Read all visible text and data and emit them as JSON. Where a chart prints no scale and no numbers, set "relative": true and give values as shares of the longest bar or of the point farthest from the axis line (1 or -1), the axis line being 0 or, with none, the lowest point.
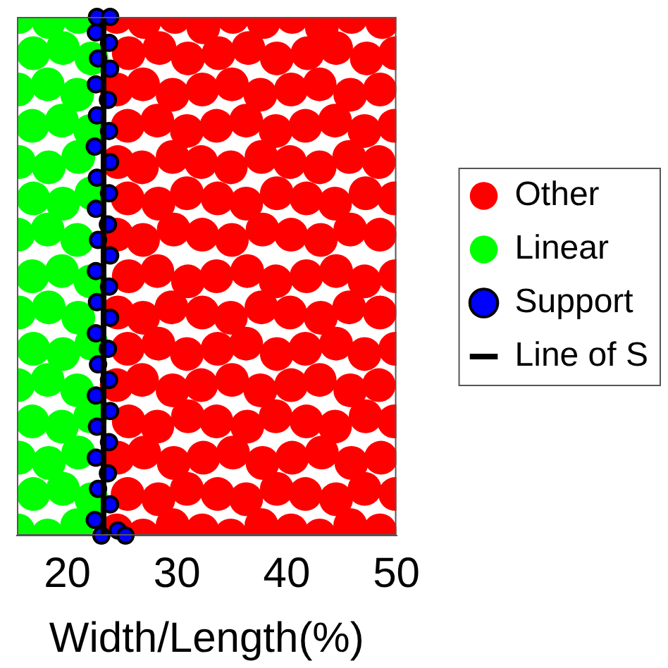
{
  "chart_data": {
    "type": "scatter",
    "xlabel": "Width/Length(%)",
    "xlim": [
      15.4,
      50
    ],
    "xticks": [
      20,
      30,
      40,
      50
    ],
    "relative": true,
    "tick_labels": "x",
    "legend": "right",
    "marker": "circle",
    "series": [
      {
        "name": "Other",
        "color": "#ff0000",
        "x": [
          24.5,
          27.0,
          29.8,
          32.4,
          35.1,
          37.9,
          40.5,
          43.2,
          45.9,
          48.7,
          25.6,
          28.4,
          31.0,
          33.8,
          36.5,
          39.1,
          41.9,
          44.5,
          47.3,
          49.9,
          24.5,
          26.9,
          29.6,
          32.3,
          35.0,
          37.6,
          40.4,
          43.0,
          45.8,
          48.5,
          25.5,
          28.2,
          30.9,
          33.6,
          36.3,
          39.0,
          41.7,
          44.4,
          47.1,
          49.8,
          24.6,
          26.8,
          29.6,
          32.2,
          34.9,
          37.7,
          40.3,
          43.0,
          45.7,
          48.4,
          25.5,
          28.3,
          30.9,
          33.7,
          36.3,
          39.1,
          41.8,
          44.4,
          47.2,
          49.8,
          24.5,
          26.9,
          29.7,
          32.3,
          35.0,
          37.8,
          40.4,
          43.1,
          45.8,
          48.5,
          25.6,
          28.2,
          31.0,
          33.6,
          36.4,
          39.0,
          41.8,
          44.5,
          47.1,
          49.9,
          24.6,
          26.9,
          29.5,
          32.3,
          34.9,
          37.7,
          40.3,
          43.1,
          45.7,
          48.5,
          25.5,
          28.3,
          30.9,
          33.7,
          36.3,
          39.1,
          41.7,
          44.5,
          47.1,
          49.9,
          24.5,
          26.8,
          29.6,
          32.2,
          35.0,
          37.6,
          40.4,
          43.0,
          45.8,
          48.4,
          25.6,
          28.2,
          31.0,
          33.6,
          36.4,
          39.0,
          41.8,
          44.4,
          47.2,
          49.8,
          24.6,
          27.0,
          29.7,
          32.4,
          35.1,
          37.8,
          40.5,
          43.2,
          45.9,
          48.6,
          25.5,
          28.3,
          30.9,
          33.7,
          36.3,
          39.1,
          41.7,
          44.5,
          47.1,
          49.9,
          24.5,
          26.9,
          29.6,
          32.3,
          34.9,
          37.7,
          40.4,
          43.0,
          45.8,
          48.5
        ],
        "values": [
          1,
          0.99,
          1,
          0.98,
          1,
          0.99,
          1,
          0.98,
          1,
          0.99,
          0.93,
          0.94,
          0.92,
          0.93,
          0.94,
          0.92,
          0.93,
          0.94,
          0.92,
          0.93,
          0.86,
          0.87,
          0.85,
          0.86,
          0.87,
          0.85,
          0.86,
          0.87,
          0.85,
          0.86,
          0.79,
          0.8,
          0.78,
          0.79,
          0.8,
          0.78,
          0.79,
          0.8,
          0.78,
          0.79,
          0.72,
          0.71,
          0.73,
          0.72,
          0.71,
          0.73,
          0.72,
          0.71,
          0.73,
          0.72,
          0.65,
          0.64,
          0.66,
          0.65,
          0.64,
          0.66,
          0.65,
          0.64,
          0.66,
          0.65,
          0.58,
          0.57,
          0.59,
          0.58,
          0.57,
          0.59,
          0.58,
          0.57,
          0.59,
          0.58,
          0.5,
          0.51,
          0.49,
          0.5,
          0.51,
          0.49,
          0.5,
          0.51,
          0.49,
          0.5,
          0.43,
          0.42,
          0.44,
          0.43,
          0.42,
          0.44,
          0.43,
          0.42,
          0.44,
          0.43,
          0.36,
          0.37,
          0.35,
          0.36,
          0.37,
          0.35,
          0.36,
          0.37,
          0.35,
          0.36,
          0.29,
          0.3,
          0.28,
          0.29,
          0.3,
          0.28,
          0.29,
          0.3,
          0.28,
          0.29,
          0.22,
          0.21,
          0.23,
          0.22,
          0.21,
          0.23,
          0.22,
          0.21,
          0.23,
          0.22,
          0.15,
          0.16,
          0.14,
          0.15,
          0.16,
          0.14,
          0.15,
          0.16,
          0.14,
          0.15,
          0.08,
          0.07,
          0.09,
          0.08,
          0.07,
          0.09,
          0.08,
          0.07,
          0.09,
          0.08,
          0.01,
          0,
          0.02,
          0.01,
          0,
          0.02,
          0.01,
          0,
          0.02,
          0.01
        ]
      },
      {
        "name": "Linear",
        "color": "#00ff00",
        "x": [
          15.6,
          18.3,
          21.0,
          16.9,
          19.6,
          22.2,
          15.5,
          18.2,
          20.9,
          16.8,
          19.5,
          22.1,
          15.6,
          18.3,
          21.0,
          16.9,
          19.6,
          22.2,
          15.5,
          18.2,
          20.9,
          16.8,
          19.5,
          22.1,
          15.6,
          18.3,
          21.0,
          16.9,
          19.6,
          22.2,
          15.5,
          18.2,
          20.9,
          16.8,
          19.5,
          22.1,
          15.6,
          18.3,
          21.0,
          16.9,
          19.6,
          22.2,
          15.5,
          18.2,
          20.9
        ],
        "values": [
          1,
          0.99,
          1,
          0.93,
          0.94,
          0.92,
          0.86,
          0.87,
          0.85,
          0.79,
          0.8,
          0.78,
          0.72,
          0.71,
          0.73,
          0.65,
          0.64,
          0.66,
          0.58,
          0.59,
          0.57,
          0.5,
          0.51,
          0.49,
          0.43,
          0.44,
          0.42,
          0.36,
          0.35,
          0.37,
          0.29,
          0.3,
          0.28,
          0.22,
          0.21,
          0.23,
          0.15,
          0.14,
          0.16,
          0.08,
          0.09,
          0.07,
          0.01,
          0,
          0.02
        ]
      },
      {
        "name": "Support",
        "color": "#0000ff",
        "x": [
          22.7,
          23.9,
          22.6,
          23.8,
          22.8,
          23.9,
          22.6,
          23.7,
          22.7,
          23.8,
          22.5,
          23.9,
          22.7,
          23.8,
          22.6,
          23.7,
          22.8,
          23.9,
          22.6,
          23.8,
          22.7,
          23.9,
          22.6,
          23.7,
          22.8,
          23.8,
          22.6,
          23.9,
          22.7,
          23.8,
          22.6,
          23.7,
          22.8,
          23.9,
          22.5,
          24.6,
          25.3,
          23.1
        ],
        "values": [
          1,
          1,
          0.97,
          0.95,
          0.92,
          0.9,
          0.87,
          0.84,
          0.81,
          0.78,
          0.75,
          0.72,
          0.69,
          0.66,
          0.63,
          0.6,
          0.57,
          0.54,
          0.51,
          0.48,
          0.45,
          0.42,
          0.39,
          0.36,
          0.33,
          0.3,
          0.27,
          0.24,
          0.21,
          0.18,
          0.15,
          0.12,
          0.09,
          0.06,
          0.03,
          0.01,
          0,
          0
        ]
      },
      {
        "name": "Line of S",
        "type": "line",
        "marker": "none",
        "color": "#000000",
        "x": [
          23.3,
          23.3
        ],
        "values": [
          0,
          1
        ]
      }
    ]
  }
}
